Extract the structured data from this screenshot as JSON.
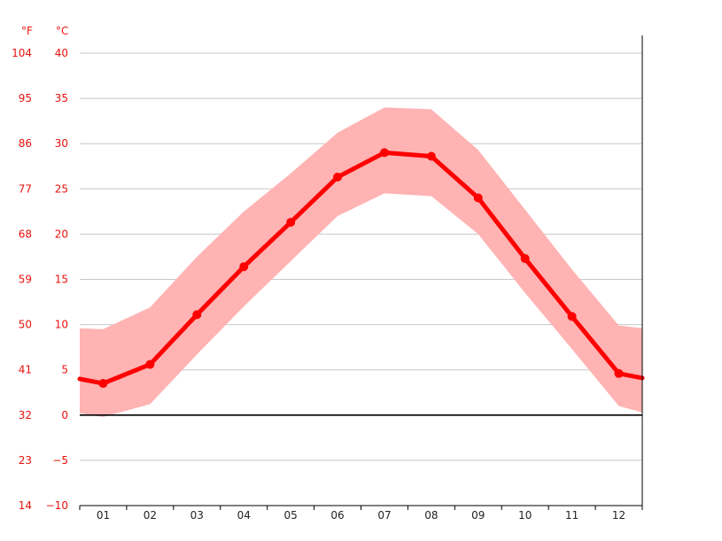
{
  "chart_data": {
    "type": "line",
    "title": "",
    "xlabel": "",
    "ylabel": "",
    "unit_f": "°F",
    "unit_c": "°C",
    "categories": [
      "01",
      "02",
      "03",
      "04",
      "05",
      "06",
      "07",
      "08",
      "09",
      "10",
      "11",
      "12"
    ],
    "y_ticks_c": [
      40,
      35,
      30,
      25,
      20,
      15,
      10,
      5,
      0,
      -5,
      -10
    ],
    "y_ticks_f": [
      104,
      95,
      86,
      77,
      68,
      59,
      50,
      41,
      32,
      23,
      14
    ],
    "y_tick_labels_c": [
      "40",
      "35",
      "30",
      "25",
      "20",
      "15",
      "10",
      "5",
      "0",
      "−5",
      "−10"
    ],
    "ylim": [
      -10,
      40
    ],
    "grid": true,
    "series": [
      {
        "values": [
          3.5,
          5.6,
          11.1,
          16.4,
          21.3,
          26.3,
          29.0,
          28.6,
          24.0,
          17.3,
          10.9,
          4.6
        ]
      }
    ],
    "band": {
      "upper": [
        9.5,
        11.9,
        17.5,
        22.5,
        26.7,
        31.2,
        34.0,
        33.8,
        29.3,
        22.7,
        16.1,
        9.9
      ],
      "lower": [
        -0.2,
        1.2,
        6.7,
        12.0,
        17.0,
        22.0,
        24.5,
        24.2,
        20.0,
        13.5,
        7.3,
        1.0
      ]
    },
    "edges": {
      "left": 4.0,
      "right": 4.1,
      "band_upper_left": 9.6,
      "band_upper_right": 9.6,
      "band_lower_left": 0.2,
      "band_lower_right": 0.3
    },
    "colors": {
      "line": "#ff0000",
      "band": "#ffb3b3",
      "grid": "#c8c8c8",
      "zero_line": "#000000",
      "axis_text": "#e8120c"
    }
  }
}
